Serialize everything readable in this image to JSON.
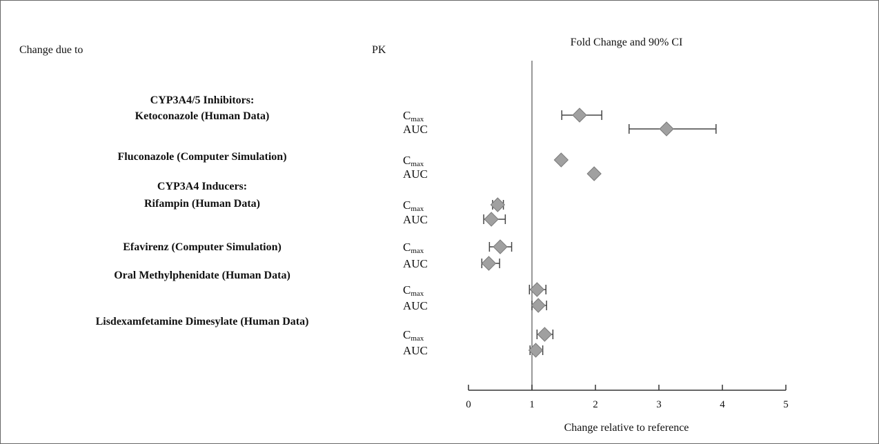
{
  "headers": {
    "change_due_to": "Change due to",
    "pk": "PK",
    "fold_change": "Fold Change and 90% CI"
  },
  "chart_data": {
    "type": "forest",
    "xlabel": "Change relative to reference",
    "xlim": [
      0,
      5
    ],
    "xticks": [
      0,
      1,
      2,
      3,
      4,
      5
    ],
    "reference_line": 1,
    "colors": {
      "marker": "#a0a0a0",
      "marker_edge": "#7a7a7a",
      "line": "#444444"
    },
    "groups": [
      {
        "lines": [
          "CYP3A4/5 Inhibitors:",
          "Ketoconazole (Human Data)"
        ],
        "rows": [
          {
            "param": "C",
            "sub": "max",
            "estimate": 1.75,
            "lower": 1.47,
            "upper": 2.1
          },
          {
            "param": "AUC",
            "sub": "",
            "estimate": 3.12,
            "lower": 2.53,
            "upper": 3.9
          }
        ]
      },
      {
        "lines": [
          "Fluconazole (Computer Simulation)"
        ],
        "rows": [
          {
            "param": "C",
            "sub": "max",
            "estimate": 1.46,
            "lower": 1.44,
            "upper": 1.48
          },
          {
            "param": "AUC",
            "sub": "",
            "estimate": 1.98,
            "lower": 1.95,
            "upper": 2.01
          }
        ]
      },
      {
        "lines": [
          "CYP3A4 Inducers:",
          "Rifampin (Human Data)"
        ],
        "rows": [
          {
            "param": "C",
            "sub": "max",
            "estimate": 0.46,
            "lower": 0.38,
            "upper": 0.55
          },
          {
            "param": "AUC",
            "sub": "",
            "estimate": 0.36,
            "lower": 0.24,
            "upper": 0.58
          }
        ]
      },
      {
        "lines": [
          "Efavirenz (Computer Simulation)"
        ],
        "rows": [
          {
            "param": "C",
            "sub": "max",
            "estimate": 0.5,
            "lower": 0.33,
            "upper": 0.68
          },
          {
            "param": "AUC",
            "sub": "",
            "estimate": 0.32,
            "lower": 0.21,
            "upper": 0.49
          }
        ]
      },
      {
        "lines": [
          "Oral Methylphenidate (Human Data)"
        ],
        "rows": [
          {
            "param": "C",
            "sub": "max",
            "estimate": 1.08,
            "lower": 0.96,
            "upper": 1.22
          },
          {
            "param": "AUC",
            "sub": "",
            "estimate": 1.1,
            "lower": 1.0,
            "upper": 1.23
          }
        ]
      },
      {
        "lines": [
          "Lisdexamfetamine Dimesylate (Human Data)"
        ],
        "rows": [
          {
            "param": "C",
            "sub": "max",
            "estimate": 1.2,
            "lower": 1.08,
            "upper": 1.33
          },
          {
            "param": "AUC",
            "sub": "",
            "estimate": 1.06,
            "lower": 0.97,
            "upper": 1.17
          }
        ]
      }
    ]
  }
}
